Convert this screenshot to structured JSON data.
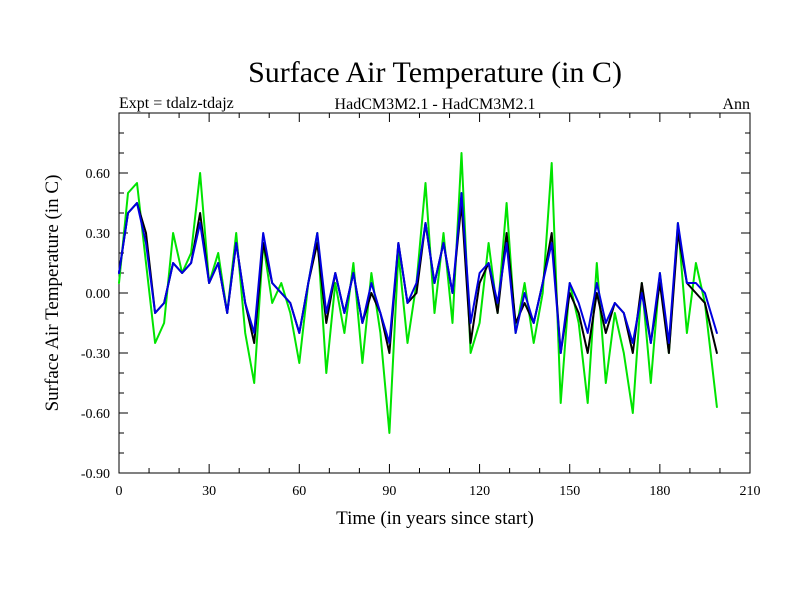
{
  "chart_data": {
    "type": "line",
    "title": "Surface Air Temperature (in C)",
    "subtitle_left": "Expt = tdalz-tdajz",
    "subtitle_center": "HadCM3M2.1 - HadCM3M2.1",
    "subtitle_right": "Ann",
    "xlabel": "Time (in years since start)",
    "ylabel": "Surface Air Temperature (in C)",
    "xlim": [
      0,
      210
    ],
    "ylim": [
      -0.9,
      0.9
    ],
    "xticks": [
      0,
      30,
      60,
      90,
      120,
      150,
      180,
      210
    ],
    "yticks": [
      -0.9,
      -0.6,
      -0.3,
      0.0,
      0.3,
      0.6
    ],
    "ytick_labels": [
      "-0.90",
      "-0.60",
      "-0.30",
      "0.00",
      "0.30",
      "0.60"
    ],
    "series": [
      {
        "name": "green",
        "color": "#00e400",
        "x": [
          0,
          3,
          6,
          9,
          12,
          15,
          18,
          21,
          24,
          27,
          30,
          33,
          36,
          39,
          42,
          45,
          48,
          51,
          54,
          57,
          60,
          63,
          66,
          69,
          72,
          75,
          78,
          81,
          84,
          87,
          90,
          93,
          96,
          99,
          102,
          105,
          108,
          111,
          114,
          117,
          120,
          123,
          126,
          129,
          132,
          135,
          138,
          141,
          144,
          147,
          150,
          153,
          156,
          159,
          162,
          165,
          168,
          171,
          174,
          177,
          180,
          183,
          186,
          189,
          192,
          195,
          199
        ],
        "values": [
          0.05,
          0.5,
          0.55,
          0.15,
          -0.25,
          -0.15,
          0.3,
          0.1,
          0.2,
          0.6,
          0.05,
          0.2,
          -0.1,
          0.3,
          -0.2,
          -0.45,
          0.25,
          -0.05,
          0.05,
          -0.1,
          -0.35,
          0.05,
          0.3,
          -0.4,
          0.05,
          -0.2,
          0.15,
          -0.35,
          0.1,
          -0.2,
          -0.7,
          0.2,
          -0.25,
          0.05,
          0.55,
          -0.1,
          0.3,
          -0.15,
          0.7,
          -0.3,
          -0.15,
          0.25,
          -0.1,
          0.45,
          -0.2,
          0.05,
          -0.25,
          0.0,
          0.65,
          -0.55,
          0.05,
          -0.15,
          -0.55,
          0.15,
          -0.45,
          -0.1,
          -0.3,
          -0.6,
          0.05,
          -0.45,
          0.1,
          -0.3,
          0.35,
          -0.2,
          0.15,
          -0.05,
          -0.57
        ]
      },
      {
        "name": "black",
        "color": "#000000",
        "x": [
          0,
          3,
          6,
          9,
          12,
          15,
          18,
          21,
          24,
          27,
          30,
          33,
          36,
          39,
          42,
          45,
          48,
          51,
          54,
          57,
          60,
          63,
          66,
          69,
          72,
          75,
          78,
          81,
          84,
          87,
          90,
          93,
          96,
          99,
          102,
          105,
          108,
          111,
          114,
          117,
          120,
          123,
          126,
          129,
          132,
          135,
          138,
          141,
          144,
          147,
          150,
          153,
          156,
          159,
          162,
          165,
          168,
          171,
          174,
          177,
          180,
          183,
          186,
          189,
          192,
          195,
          199
        ],
        "values": [
          0.1,
          0.4,
          0.45,
          0.3,
          -0.1,
          -0.05,
          0.15,
          0.1,
          0.15,
          0.4,
          0.05,
          0.15,
          -0.1,
          0.25,
          -0.05,
          -0.25,
          0.25,
          0.05,
          0.0,
          -0.05,
          -0.2,
          0.05,
          0.25,
          -0.15,
          0.1,
          -0.1,
          0.1,
          -0.15,
          0.0,
          -0.1,
          -0.3,
          0.25,
          -0.05,
          0.0,
          0.35,
          0.05,
          0.25,
          0.0,
          0.45,
          -0.25,
          0.05,
          0.15,
          -0.1,
          0.3,
          -0.15,
          -0.05,
          -0.15,
          0.05,
          0.3,
          -0.3,
          0.0,
          -0.1,
          -0.3,
          0.0,
          -0.2,
          -0.05,
          -0.1,
          -0.3,
          0.05,
          -0.25,
          0.05,
          -0.3,
          0.3,
          0.05,
          0.0,
          -0.05,
          -0.3
        ]
      },
      {
        "name": "blue",
        "color": "#0000e0",
        "x": [
          0,
          3,
          6,
          9,
          12,
          15,
          18,
          21,
          24,
          27,
          30,
          33,
          36,
          39,
          42,
          45,
          48,
          51,
          54,
          57,
          60,
          63,
          66,
          69,
          72,
          75,
          78,
          81,
          84,
          87,
          90,
          93,
          96,
          99,
          102,
          105,
          108,
          111,
          114,
          117,
          120,
          123,
          126,
          129,
          132,
          135,
          138,
          141,
          144,
          147,
          150,
          153,
          156,
          159,
          162,
          165,
          168,
          171,
          174,
          177,
          180,
          183,
          186,
          189,
          192,
          195,
          199
        ],
        "values": [
          0.1,
          0.4,
          0.45,
          0.25,
          -0.1,
          -0.05,
          0.15,
          0.1,
          0.15,
          0.35,
          0.05,
          0.15,
          -0.1,
          0.25,
          -0.05,
          -0.2,
          0.3,
          0.05,
          0.0,
          -0.05,
          -0.2,
          0.05,
          0.3,
          -0.1,
          0.1,
          -0.1,
          0.1,
          -0.15,
          0.05,
          -0.1,
          -0.25,
          0.25,
          -0.05,
          0.05,
          0.35,
          0.05,
          0.25,
          0.0,
          0.5,
          -0.15,
          0.1,
          0.15,
          -0.05,
          0.25,
          -0.2,
          0.0,
          -0.15,
          0.05,
          0.25,
          -0.3,
          0.05,
          -0.05,
          -0.2,
          0.05,
          -0.15,
          -0.05,
          -0.1,
          -0.25,
          0.0,
          -0.25,
          0.1,
          -0.25,
          0.35,
          0.05,
          0.05,
          0.0,
          -0.2
        ]
      }
    ]
  }
}
